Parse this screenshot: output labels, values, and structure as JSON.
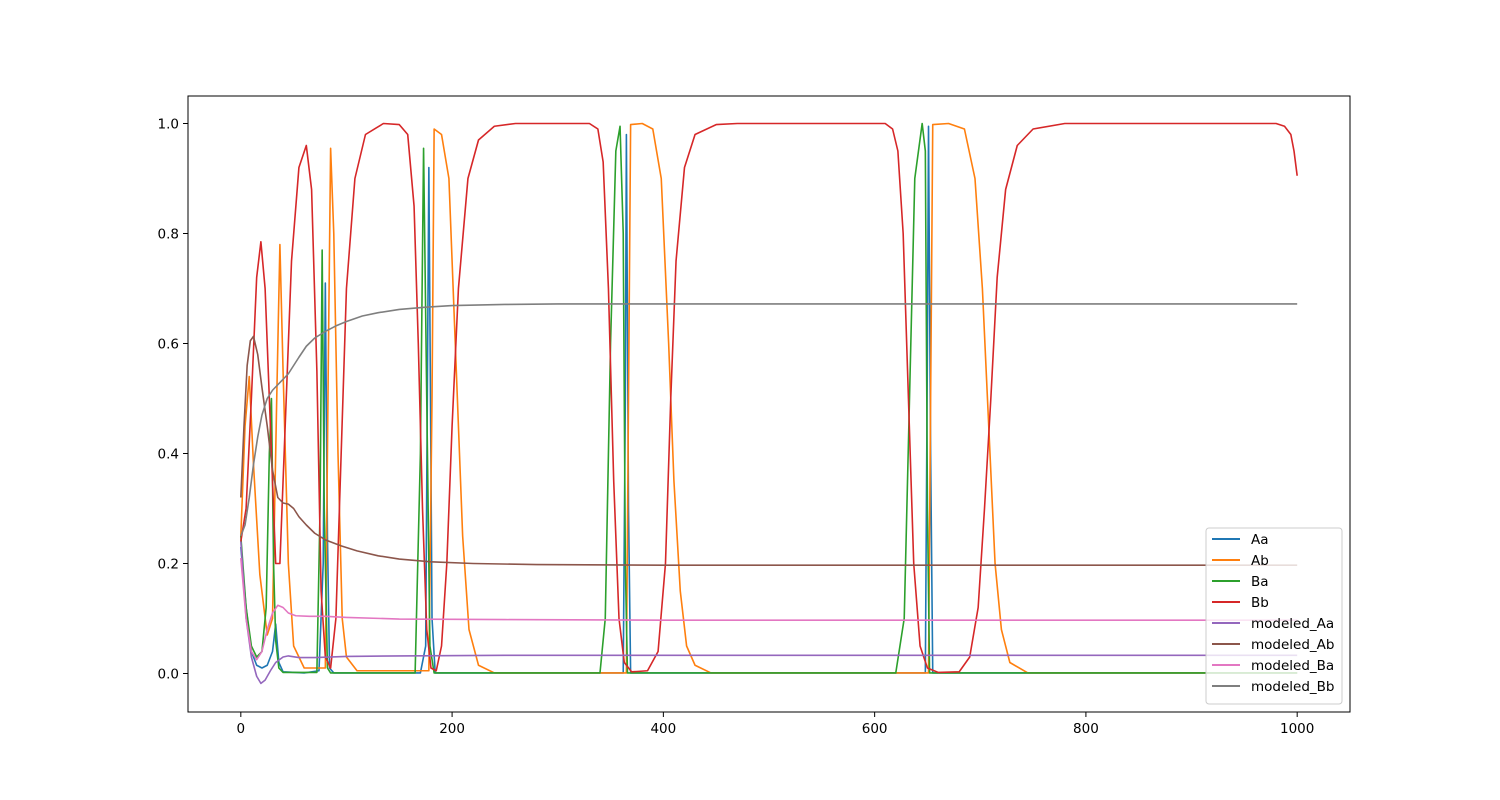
{
  "chart_data": {
    "type": "line",
    "title": "",
    "xlabel": "",
    "ylabel": "",
    "xlim": [
      -50,
      1050
    ],
    "ylim": [
      -0.07,
      1.05
    ],
    "xticks": [
      0,
      200,
      400,
      600,
      800,
      1000
    ],
    "xtick_labels": [
      "0",
      "200",
      "400",
      "600",
      "800",
      "1000"
    ],
    "yticks": [
      0.0,
      0.2,
      0.4,
      0.6,
      0.8,
      1.0
    ],
    "ytick_labels": [
      "0.0",
      "0.2",
      "0.4",
      "0.6",
      "0.8",
      "1.0"
    ],
    "grid": false,
    "legend_position": "lower-right",
    "series": [
      {
        "name": "Aa",
        "color": "#1f77b4",
        "points": [
          [
            0,
            0.23
          ],
          [
            5,
            0.12
          ],
          [
            10,
            0.04
          ],
          [
            15,
            0.015
          ],
          [
            20,
            0.01
          ],
          [
            25,
            0.015
          ],
          [
            30,
            0.04
          ],
          [
            33,
            0.09
          ],
          [
            36,
            0.02
          ],
          [
            40,
            0.003
          ],
          [
            60,
            0.001
          ],
          [
            74,
            0.005
          ],
          [
            78,
            0.2
          ],
          [
            80,
            0.71
          ],
          [
            82,
            0.25
          ],
          [
            84,
            0.01
          ],
          [
            88,
            0.001
          ],
          [
            170,
            0.001
          ],
          [
            175,
            0.05
          ],
          [
            178,
            0.92
          ],
          [
            181,
            0.1
          ],
          [
            184,
            0.001
          ],
          [
            362,
            0.001
          ],
          [
            364,
            0.5
          ],
          [
            365,
            0.98
          ],
          [
            367,
            0.3
          ],
          [
            369,
            0.001
          ],
          [
            648,
            0.001
          ],
          [
            650,
            0.6
          ],
          [
            651,
            0.995
          ],
          [
            653,
            0.4
          ],
          [
            655,
            0.001
          ],
          [
            1000,
            0.001
          ]
        ]
      },
      {
        "name": "Ab",
        "color": "#ff7f0e",
        "points": [
          [
            0,
            0.25
          ],
          [
            4,
            0.45
          ],
          [
            8,
            0.54
          ],
          [
            12,
            0.38
          ],
          [
            18,
            0.18
          ],
          [
            25,
            0.07
          ],
          [
            30,
            0.1
          ],
          [
            34,
            0.5
          ],
          [
            37,
            0.78
          ],
          [
            40,
            0.55
          ],
          [
            45,
            0.2
          ],
          [
            50,
            0.05
          ],
          [
            60,
            0.01
          ],
          [
            80,
            0.01
          ],
          [
            83,
            0.6
          ],
          [
            85,
            0.955
          ],
          [
            88,
            0.8
          ],
          [
            92,
            0.4
          ],
          [
            96,
            0.1
          ],
          [
            100,
            0.03
          ],
          [
            110,
            0.005
          ],
          [
            178,
            0.005
          ],
          [
            181,
            0.5
          ],
          [
            183,
            0.99
          ],
          [
            190,
            0.98
          ],
          [
            197,
            0.9
          ],
          [
            203,
            0.6
          ],
          [
            210,
            0.25
          ],
          [
            216,
            0.08
          ],
          [
            225,
            0.015
          ],
          [
            240,
            0.001
          ],
          [
            365,
            0.001
          ],
          [
            367,
            0.5
          ],
          [
            369,
            0.998
          ],
          [
            380,
            1.0
          ],
          [
            390,
            0.99
          ],
          [
            398,
            0.9
          ],
          [
            405,
            0.6
          ],
          [
            410,
            0.35
          ],
          [
            416,
            0.15
          ],
          [
            422,
            0.05
          ],
          [
            430,
            0.015
          ],
          [
            445,
            0.001
          ],
          [
            651,
            0.001
          ],
          [
            653,
            0.5
          ],
          [
            655,
            0.998
          ],
          [
            670,
            1.0
          ],
          [
            685,
            0.99
          ],
          [
            695,
            0.9
          ],
          [
            702,
            0.7
          ],
          [
            708,
            0.45
          ],
          [
            714,
            0.2
          ],
          [
            720,
            0.08
          ],
          [
            728,
            0.02
          ],
          [
            745,
            0.001
          ],
          [
            1000,
            0.001
          ]
        ]
      },
      {
        "name": "Ba",
        "color": "#2ca02c",
        "points": [
          [
            0,
            0.25
          ],
          [
            5,
            0.12
          ],
          [
            10,
            0.05
          ],
          [
            15,
            0.03
          ],
          [
            20,
            0.04
          ],
          [
            24,
            0.12
          ],
          [
            27,
            0.4
          ],
          [
            29,
            0.5
          ],
          [
            31,
            0.2
          ],
          [
            33,
            0.06
          ],
          [
            36,
            0.01
          ],
          [
            40,
            0.002
          ],
          [
            72,
            0.002
          ],
          [
            75,
            0.3
          ],
          [
            77,
            0.77
          ],
          [
            79,
            0.3
          ],
          [
            82,
            0.01
          ],
          [
            85,
            0.001
          ],
          [
            165,
            0.001
          ],
          [
            170,
            0.4
          ],
          [
            173,
            0.955
          ],
          [
            176,
            0.5
          ],
          [
            179,
            0.05
          ],
          [
            183,
            0.001
          ],
          [
            340,
            0.001
          ],
          [
            345,
            0.1
          ],
          [
            350,
            0.6
          ],
          [
            355,
            0.95
          ],
          [
            359,
            0.995
          ],
          [
            362,
            0.8
          ],
          [
            364,
            0.2
          ],
          [
            366,
            0.001
          ],
          [
            620,
            0.001
          ],
          [
            628,
            0.1
          ],
          [
            633,
            0.5
          ],
          [
            638,
            0.9
          ],
          [
            645,
            1.0
          ],
          [
            648,
            0.95
          ],
          [
            650,
            0.3
          ],
          [
            652,
            0.001
          ],
          [
            1000,
            0.001
          ]
        ]
      },
      {
        "name": "Bb",
        "color": "#d62728",
        "points": [
          [
            0,
            0.24
          ],
          [
            5,
            0.3
          ],
          [
            10,
            0.5
          ],
          [
            15,
            0.72
          ],
          [
            19,
            0.785
          ],
          [
            23,
            0.7
          ],
          [
            28,
            0.45
          ],
          [
            33,
            0.2
          ],
          [
            37,
            0.2
          ],
          [
            42,
            0.45
          ],
          [
            48,
            0.75
          ],
          [
            55,
            0.92
          ],
          [
            62,
            0.96
          ],
          [
            67,
            0.88
          ],
          [
            72,
            0.55
          ],
          [
            76,
            0.15
          ],
          [
            80,
            0.03
          ],
          [
            85,
            0.01
          ],
          [
            90,
            0.1
          ],
          [
            95,
            0.4
          ],
          [
            100,
            0.7
          ],
          [
            108,
            0.9
          ],
          [
            118,
            0.98
          ],
          [
            135,
            1.0
          ],
          [
            150,
            0.998
          ],
          [
            158,
            0.98
          ],
          [
            164,
            0.85
          ],
          [
            168,
            0.6
          ],
          [
            172,
            0.3
          ],
          [
            176,
            0.08
          ],
          [
            180,
            0.01
          ],
          [
            185,
            0.005
          ],
          [
            190,
            0.05
          ],
          [
            195,
            0.2
          ],
          [
            200,
            0.45
          ],
          [
            206,
            0.7
          ],
          [
            215,
            0.9
          ],
          [
            225,
            0.97
          ],
          [
            240,
            0.995
          ],
          [
            260,
            1.0
          ],
          [
            330,
            1.0
          ],
          [
            338,
            0.99
          ],
          [
            343,
            0.93
          ],
          [
            348,
            0.7
          ],
          [
            353,
            0.35
          ],
          [
            358,
            0.1
          ],
          [
            363,
            0.02
          ],
          [
            370,
            0.003
          ],
          [
            385,
            0.005
          ],
          [
            395,
            0.04
          ],
          [
            402,
            0.2
          ],
          [
            407,
            0.5
          ],
          [
            412,
            0.75
          ],
          [
            420,
            0.92
          ],
          [
            430,
            0.98
          ],
          [
            450,
            0.998
          ],
          [
            470,
            1.0
          ],
          [
            610,
            1.0
          ],
          [
            617,
            0.99
          ],
          [
            622,
            0.95
          ],
          [
            627,
            0.8
          ],
          [
            632,
            0.5
          ],
          [
            637,
            0.2
          ],
          [
            643,
            0.05
          ],
          [
            650,
            0.01
          ],
          [
            660,
            0.002
          ],
          [
            680,
            0.003
          ],
          [
            690,
            0.03
          ],
          [
            698,
            0.12
          ],
          [
            704,
            0.3
          ],
          [
            710,
            0.5
          ],
          [
            716,
            0.72
          ],
          [
            724,
            0.88
          ],
          [
            735,
            0.96
          ],
          [
            750,
            0.99
          ],
          [
            780,
            1.0
          ],
          [
            980,
            1.0
          ],
          [
            988,
            0.995
          ],
          [
            994,
            0.98
          ],
          [
            997,
            0.95
          ],
          [
            1000,
            0.905
          ]
        ]
      },
      {
        "name": "modeled_Aa",
        "color": "#9467bd",
        "points": [
          [
            0,
            0.24
          ],
          [
            5,
            0.1
          ],
          [
            10,
            0.03
          ],
          [
            15,
            -0.005
          ],
          [
            19,
            -0.018
          ],
          [
            23,
            -0.012
          ],
          [
            28,
            0.005
          ],
          [
            33,
            0.02
          ],
          [
            40,
            0.03
          ],
          [
            45,
            0.032
          ],
          [
            55,
            0.029
          ],
          [
            70,
            0.029
          ],
          [
            100,
            0.031
          ],
          [
            150,
            0.032
          ],
          [
            250,
            0.033
          ],
          [
            400,
            0.033
          ],
          [
            1000,
            0.033
          ]
        ]
      },
      {
        "name": "modeled_Ab",
        "color": "#8c564b",
        "points": [
          [
            0,
            0.32
          ],
          [
            3,
            0.45
          ],
          [
            6,
            0.56
          ],
          [
            9,
            0.605
          ],
          [
            12,
            0.613
          ],
          [
            16,
            0.58
          ],
          [
            20,
            0.52
          ],
          [
            25,
            0.45
          ],
          [
            30,
            0.37
          ],
          [
            35,
            0.32
          ],
          [
            40,
            0.31
          ],
          [
            45,
            0.308
          ],
          [
            50,
            0.3
          ],
          [
            55,
            0.285
          ],
          [
            62,
            0.27
          ],
          [
            70,
            0.255
          ],
          [
            80,
            0.243
          ],
          [
            95,
            0.232
          ],
          [
            110,
            0.223
          ],
          [
            130,
            0.214
          ],
          [
            150,
            0.208
          ],
          [
            180,
            0.203
          ],
          [
            220,
            0.2
          ],
          [
            280,
            0.198
          ],
          [
            400,
            0.197
          ],
          [
            1000,
            0.197
          ]
        ]
      },
      {
        "name": "modeled_Ba",
        "color": "#e377c2",
        "points": [
          [
            0,
            0.21
          ],
          [
            5,
            0.1
          ],
          [
            10,
            0.04
          ],
          [
            15,
            0.025
          ],
          [
            20,
            0.04
          ],
          [
            25,
            0.08
          ],
          [
            30,
            0.11
          ],
          [
            35,
            0.124
          ],
          [
            40,
            0.12
          ],
          [
            45,
            0.11
          ],
          [
            52,
            0.105
          ],
          [
            65,
            0.104
          ],
          [
            80,
            0.104
          ],
          [
            100,
            0.102
          ],
          [
            150,
            0.099
          ],
          [
            250,
            0.098
          ],
          [
            400,
            0.097
          ],
          [
            1000,
            0.097
          ]
        ]
      },
      {
        "name": "modeled_Bb",
        "color": "#7f7f7f",
        "points": [
          [
            0,
            0.25
          ],
          [
            4,
            0.27
          ],
          [
            8,
            0.32
          ],
          [
            12,
            0.38
          ],
          [
            16,
            0.43
          ],
          [
            20,
            0.47
          ],
          [
            25,
            0.5
          ],
          [
            30,
            0.515
          ],
          [
            35,
            0.525
          ],
          [
            40,
            0.535
          ],
          [
            45,
            0.545
          ],
          [
            50,
            0.56
          ],
          [
            55,
            0.575
          ],
          [
            62,
            0.595
          ],
          [
            70,
            0.61
          ],
          [
            80,
            0.622
          ],
          [
            90,
            0.632
          ],
          [
            100,
            0.64
          ],
          [
            115,
            0.65
          ],
          [
            130,
            0.656
          ],
          [
            150,
            0.662
          ],
          [
            175,
            0.666
          ],
          [
            200,
            0.669
          ],
          [
            250,
            0.671
          ],
          [
            300,
            0.672
          ],
          [
            400,
            0.672
          ],
          [
            1000,
            0.672
          ]
        ]
      }
    ]
  }
}
